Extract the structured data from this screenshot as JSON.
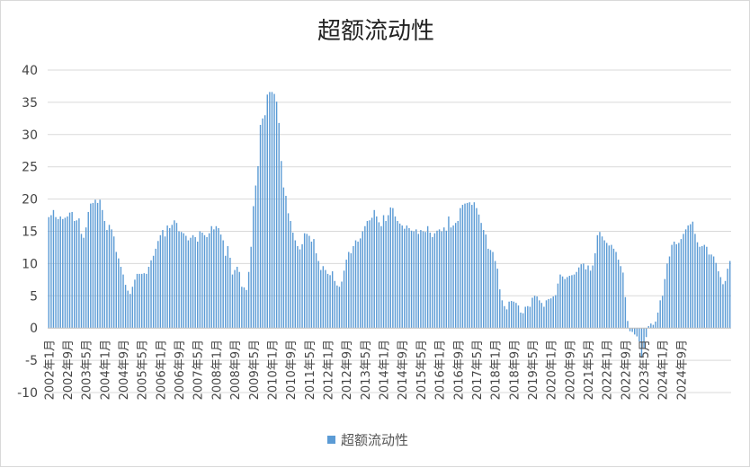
{
  "chart_data": {
    "type": "bar",
    "title": "超额流动性",
    "xlabel": "",
    "ylabel": "",
    "ylim": [
      -10,
      40
    ],
    "yticks": [
      -10,
      -5,
      0,
      5,
      10,
      15,
      20,
      25,
      30,
      35,
      40
    ],
    "grid": true,
    "legend_position": "bottom",
    "bar_color": "#5b9bd5",
    "x_start": "2002-01",
    "x_end": "2024-09",
    "x_tick_every_months": 8,
    "tick_labels": [
      "2002年1月",
      "2002年9月",
      "2003年5月",
      "2004年1月",
      "2004年9月",
      "2005年5月",
      "2006年1月",
      "2006年9月",
      "2007年5月",
      "2008年1月",
      "2008年9月",
      "2009年5月",
      "2010年1月",
      "2010年9月",
      "2011年5月",
      "2012年1月",
      "2012年9月",
      "2013年5月",
      "2014年1月",
      "2014年9月",
      "2015年5月",
      "2016年1月",
      "2016年9月",
      "2017年5月",
      "2018年1月",
      "2018年9月",
      "2019年5月",
      "2020年1月",
      "2020年9月",
      "2021年5月",
      "2022年1月",
      "2022年9月",
      "2023年5月",
      "2024年1月",
      "2024年9月"
    ],
    "series": [
      {
        "name": "超额流动性",
        "values": [
          17.2,
          17.5,
          18.3,
          17.2,
          16.9,
          17.3,
          16.9,
          17.1,
          17.3,
          17.9,
          18.0,
          16.6,
          16.7,
          17.0,
          14.6,
          14.0,
          15.6,
          18.0,
          19.3,
          19.4,
          19.9,
          19.4,
          19.9,
          18.3,
          16.6,
          15.2,
          16.0,
          15.3,
          14.2,
          11.8,
          10.8,
          9.5,
          8.3,
          6.7,
          5.8,
          5.3,
          6.4,
          7.5,
          8.4,
          8.4,
          8.4,
          8.5,
          8.4,
          9.5,
          10.5,
          11.2,
          12.3,
          13.5,
          14.4,
          15.2,
          14.2,
          15.9,
          15.5,
          16.0,
          16.7,
          16.3,
          15.0,
          14.9,
          14.7,
          14.3,
          13.6,
          14.0,
          14.4,
          14.1,
          13.4,
          15.0,
          14.8,
          14.4,
          14.1,
          14.7,
          15.8,
          15.3,
          15.8,
          15.5,
          14.5,
          13.6,
          11.2,
          12.7,
          10.9,
          8.3,
          9.0,
          9.5,
          8.7,
          6.4,
          6.3,
          5.9,
          8.7,
          12.6,
          18.9,
          22.1,
          25.1,
          31.5,
          32.5,
          33.0,
          36.2,
          36.6,
          36.6,
          36.3,
          35.1,
          31.8,
          25.9,
          21.8,
          20.5,
          17.8,
          16.6,
          14.8,
          13.6,
          12.7,
          12.2,
          13.0,
          14.7,
          14.6,
          14.3,
          13.4,
          13.8,
          11.6,
          10.4,
          9.0,
          9.6,
          9.0,
          8.4,
          8.2,
          8.8,
          7.3,
          6.6,
          6.4,
          7.2,
          8.9,
          10.6,
          11.8,
          11.6,
          12.7,
          13.6,
          13.4,
          13.9,
          15.0,
          15.8,
          16.6,
          16.7,
          17.1,
          18.3,
          17.3,
          16.4,
          15.8,
          17.5,
          16.6,
          17.5,
          18.7,
          18.6,
          17.3,
          16.6,
          16.2,
          15.9,
          15.4,
          15.9,
          15.5,
          15.1,
          15.0,
          15.3,
          14.6,
          15.2,
          15.0,
          14.9,
          15.8,
          14.8,
          14.1,
          14.7,
          15.1,
          15.3,
          15.0,
          15.6,
          15.1,
          17.3,
          15.6,
          15.9,
          16.3,
          16.6,
          18.6,
          19.1,
          19.3,
          19.4,
          19.5,
          19.1,
          19.5,
          18.6,
          17.6,
          16.3,
          15.2,
          14.5,
          12.3,
          12.1,
          11.8,
          10.4,
          9.2,
          6.0,
          4.3,
          3.4,
          2.9,
          4.1,
          4.2,
          4.1,
          3.9,
          3.5,
          2.4,
          2.3,
          3.3,
          3.4,
          3.3,
          4.7,
          5.0,
          4.9,
          4.3,
          3.9,
          3.3,
          4.3,
          4.5,
          4.6,
          4.9,
          5.1,
          6.9,
          8.3,
          8.0,
          7.6,
          7.9,
          8.1,
          8.2,
          8.3,
          8.7,
          9.4,
          9.9,
          10.0,
          9.1,
          9.7,
          8.9,
          9.7,
          11.6,
          14.4,
          14.9,
          14.2,
          13.6,
          13.2,
          12.8,
          12.9,
          12.3,
          11.8,
          10.6,
          9.6,
          8.6,
          4.8,
          1.1,
          -0.5,
          -0.6,
          -1.0,
          -1.3,
          -2.1,
          -4.6,
          -3.2,
          -1.4,
          0.3,
          0.7,
          0.5,
          1.0,
          2.4,
          4.3,
          5.0,
          7.6,
          10.0,
          11.1,
          12.9,
          13.4,
          13.0,
          13.2,
          13.8,
          14.6,
          15.3,
          15.9,
          16.1,
          16.5,
          14.6,
          13.3,
          12.6,
          12.7,
          12.9,
          12.6,
          11.4,
          11.4,
          11.1,
          10.1,
          8.8,
          7.9,
          6.8,
          7.3,
          9.2,
          10.4
        ]
      }
    ]
  }
}
